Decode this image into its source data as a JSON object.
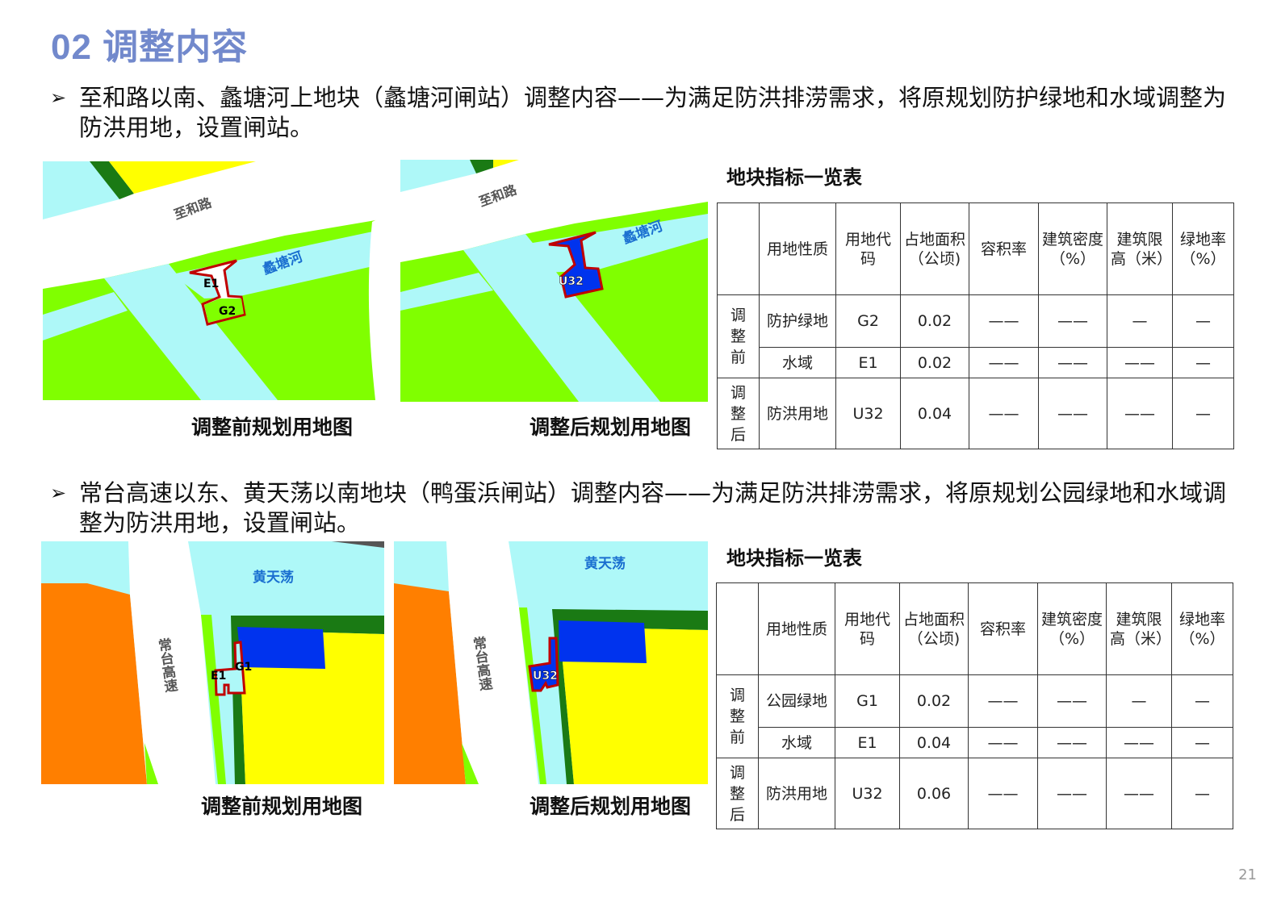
{
  "title": "02 调整内容",
  "sections": [
    {
      "bullet": "至和路以南、蠡塘河上地块（蠡塘河闸站）调整内容——为满足防洪排涝需求，将原规划防护绿地和水域调整为防洪用地，设置闸站。",
      "map_before": {
        "caption": "调整前规划用地图",
        "road_label": "至和路",
        "river_label": "蠡塘河",
        "parcel_labels": [
          "E1",
          "G2"
        ]
      },
      "map_after": {
        "caption": "调整后规划用地图",
        "road_label": "至和路",
        "river_label": "蠡塘河",
        "parcel_labels": [
          "U32"
        ]
      },
      "table": {
        "title": "地块指标一览表",
        "headers": [
          "",
          "用地性质",
          "用地代码",
          "占地面积（公顷)",
          "容积率",
          "建筑密度（%）",
          "建筑限高（米）",
          "绿地率（%）"
        ],
        "groups": [
          {
            "label": "调整前",
            "rows": [
              [
                "防护绿地",
                "G2",
                "0.02",
                "——",
                "——",
                "—",
                "—"
              ],
              [
                "水域",
                "E1",
                "0.02",
                "——",
                "——",
                "——",
                "—"
              ]
            ]
          },
          {
            "label": "调整后",
            "rows": [
              [
                "防洪用地",
                "U32",
                "0.04",
                "——",
                "——",
                "——",
                "—"
              ]
            ]
          }
        ]
      }
    },
    {
      "bullet": "常台高速以东、黄天荡以南地块（鸭蛋浜闸站）调整内容——为满足防洪排涝需求，将原规划公园绿地和水域调整为防洪用地，设置闸站。",
      "map_before": {
        "caption": "调整前规划用地图",
        "road_label": "常台高速",
        "river_label": "黄天荡",
        "parcel_labels": [
          "E1",
          "G1"
        ]
      },
      "map_after": {
        "caption": "调整后规划用地图",
        "road_label": "常台高速",
        "river_label": "黄天荡",
        "parcel_labels": [
          "U32"
        ]
      },
      "table": {
        "title": "地块指标一览表",
        "headers": [
          "",
          "用地性质",
          "用地代码",
          "占地面积（公顷)",
          "容积率",
          "建筑密度（%）",
          "建筑限高（米）",
          "绿地率（%）"
        ],
        "groups": [
          {
            "label": "调整前",
            "rows": [
              [
                "公园绿地",
                "G1",
                "0.02",
                "——",
                "——",
                "—",
                "—"
              ],
              [
                "水域",
                "E1",
                "0.04",
                "——",
                "——",
                "——",
                "—"
              ]
            ]
          },
          {
            "label": "调整后",
            "rows": [
              [
                "防洪用地",
                "U32",
                "0.06",
                "——",
                "——",
                "——",
                "—"
              ]
            ]
          }
        ]
      }
    }
  ],
  "page_number": "21",
  "colors": {
    "title": "#7289cc",
    "water": "#aef8f8",
    "green": "#80ff00",
    "dark_green": "#1a7a14",
    "yellow": "#ffff00",
    "orange": "#ff7f00",
    "flood_control": "#0033ee",
    "outline": "#c00000",
    "label_blue": "#1a6fd0"
  }
}
